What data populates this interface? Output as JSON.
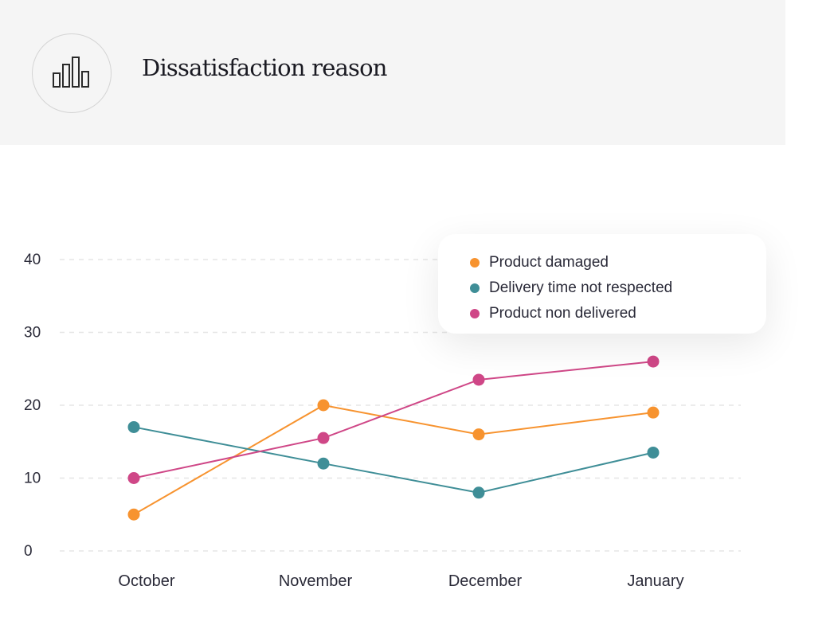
{
  "header": {
    "title": "Dissatisfaction reason",
    "icon": "bar-chart-icon"
  },
  "chart_data": {
    "type": "line",
    "categories": [
      "October",
      "November",
      "December",
      "January"
    ],
    "series": [
      {
        "name": "Product damaged",
        "color": "#f7932f",
        "values": [
          5,
          20,
          16,
          19
        ]
      },
      {
        "name": "Delivery time not respected",
        "color": "#3f8e97",
        "values": [
          17,
          12,
          8,
          13.5
        ]
      },
      {
        "name": "Product non delivered",
        "color": "#cf4787",
        "values": [
          10,
          15.5,
          23.5,
          26
        ]
      }
    ],
    "yticks": [
      "0",
      "10",
      "20",
      "30",
      "40"
    ],
    "ylim": [
      0,
      40
    ],
    "grid": true,
    "grid_style": "dashed",
    "legend_position": "top-right"
  }
}
